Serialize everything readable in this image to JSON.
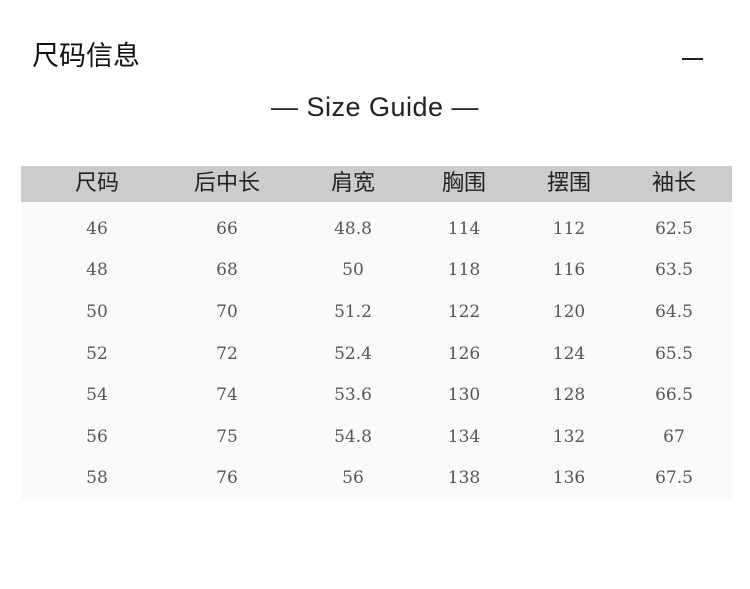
{
  "title": "尺码信息",
  "subtitle": "— Size Guide —",
  "table": {
    "headers": [
      "尺码",
      "后中长",
      "肩宽",
      "胸围",
      "摆围",
      "袖长"
    ],
    "rows": [
      [
        "46",
        "66",
        "48.8",
        "114",
        "112",
        "62.5"
      ],
      [
        "48",
        "68",
        "50",
        "118",
        "116",
        "63.5"
      ],
      [
        "50",
        "70",
        "51.2",
        "122",
        "120",
        "64.5"
      ],
      [
        "52",
        "72",
        "52.4",
        "126",
        "124",
        "65.5"
      ],
      [
        "54",
        "74",
        "53.6",
        "130",
        "128",
        "66.5"
      ],
      [
        "56",
        "75",
        "54.8",
        "134",
        "132",
        "67"
      ],
      [
        "58",
        "76",
        "56",
        "138",
        "136",
        "67.5"
      ]
    ]
  },
  "colors": {
    "header_bg": "#cccccc",
    "body_bg": "#f9fbfa"
  }
}
